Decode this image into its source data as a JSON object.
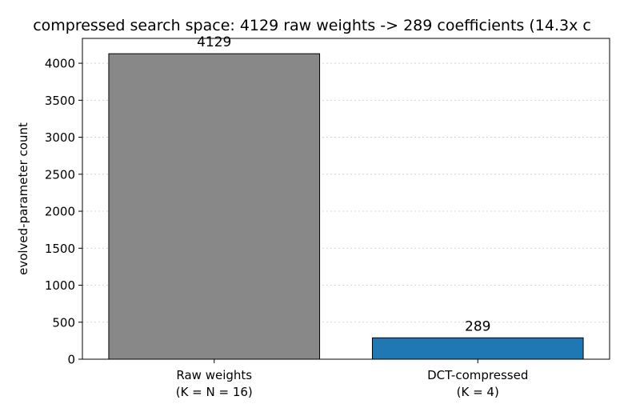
{
  "chart_data": {
    "type": "bar",
    "title": "compressed search space: 4129 raw weights -> 289 coefficients (14.3x c",
    "xlabel": "",
    "ylabel": "evolved-parameter count",
    "categories": [
      [
        "Raw weights",
        "(K = N = 16)"
      ],
      [
        "DCT-compressed",
        "(K = 4)"
      ]
    ],
    "values": [
      4129,
      289
    ],
    "data_labels": [
      "4129",
      "289"
    ],
    "bar_colors": [
      "#888888",
      "#1f77b4"
    ],
    "ylim": [
      0,
      4336
    ],
    "yticks": [
      0,
      500,
      1000,
      1500,
      2000,
      2500,
      3000,
      3500,
      4000
    ],
    "ytick_labels": [
      "0",
      "500",
      "1000",
      "1500",
      "2000",
      "2500",
      "3000",
      "3500",
      "4000"
    ],
    "grid": "horizontal-dotted",
    "legend": "none"
  }
}
